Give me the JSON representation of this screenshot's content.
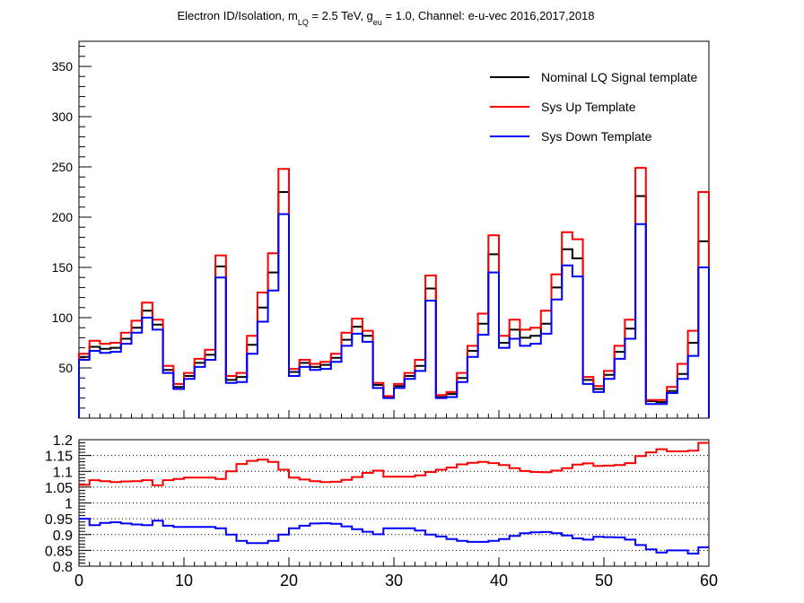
{
  "chart_data": [
    {
      "type": "line",
      "title_parts": {
        "a": "Electron ID/Isolation, m",
        "b": "LQ",
        "c": " = 2.5 TeV, g",
        "d": "eu",
        "e": " = 1.0, Channel: e-u-vec 2016,2017,2018"
      },
      "xlim": [
        0,
        60
      ],
      "ylim": [
        0,
        375
      ],
      "ytick_values": [
        50,
        100,
        150,
        200,
        250,
        300,
        350
      ],
      "ytick_labels": [
        "50",
        "100",
        "150",
        "200",
        "250",
        "300",
        "350"
      ],
      "legend_position": "top-right",
      "bin_edges": [
        0,
        1,
        2,
        3,
        4,
        5,
        6,
        7,
        8,
        9,
        10,
        11,
        12,
        13,
        14,
        15,
        16,
        17,
        18,
        19,
        20,
        21,
        22,
        23,
        24,
        25,
        26,
        27,
        28,
        29,
        30,
        31,
        32,
        33,
        34,
        35,
        36,
        37,
        38,
        39,
        40,
        41,
        42,
        43,
        44,
        45,
        46,
        47,
        48,
        49,
        50,
        51,
        52,
        53,
        54,
        55,
        56,
        57,
        58,
        59,
        60
      ],
      "series": [
        {
          "name": "Nominal LQ Signal template",
          "color": "#000000",
          "values": [
            61,
            71,
            69,
            70,
            79,
            90,
            107,
            93,
            48,
            31,
            42,
            55,
            63,
            151,
            38,
            41,
            73,
            110,
            145,
            225,
            46,
            55,
            51,
            53,
            60,
            78,
            91,
            82,
            33,
            21,
            32,
            42,
            52,
            129,
            21,
            24,
            40,
            67,
            94,
            163,
            75,
            88,
            80,
            82,
            94,
            130,
            168,
            159,
            38,
            29,
            43,
            66,
            89,
            221,
            17,
            16,
            27,
            44,
            75,
            176
          ]
        },
        {
          "name": "Sys Up Template",
          "color": "#ff0000",
          "values": [
            64,
            77,
            74,
            75,
            85,
            97,
            115,
            98,
            52,
            34,
            45,
            59,
            68,
            162,
            42,
            45,
            82,
            125,
            164,
            248,
            49,
            58,
            54,
            56,
            64,
            85,
            99,
            87,
            35,
            22,
            34,
            45,
            58,
            142,
            23,
            26,
            45,
            72,
            104,
            182,
            82,
            98,
            88,
            90,
            107,
            143,
            185,
            178,
            41,
            32,
            47,
            72,
            98,
            249,
            18,
            18,
            31,
            54,
            87,
            225
          ]
        },
        {
          "name": "Sys Down Template",
          "color": "#0000ff",
          "values": [
            58,
            67,
            65,
            66,
            74,
            85,
            100,
            88,
            45,
            29,
            39,
            51,
            58,
            140,
            35,
            36,
            64,
            96,
            127,
            203,
            42,
            51,
            48,
            49,
            56,
            72,
            84,
            76,
            30,
            20,
            30,
            39,
            47,
            117,
            20,
            21,
            36,
            61,
            83,
            145,
            70,
            79,
            72,
            74,
            84,
            118,
            152,
            141,
            34,
            26,
            39,
            59,
            79,
            193,
            14,
            14,
            25,
            39,
            62,
            150
          ]
        }
      ]
    },
    {
      "type": "line",
      "xlim": [
        0,
        60
      ],
      "ylim": [
        0.8,
        1.2
      ],
      "xtick_values": [
        0,
        10,
        20,
        30,
        40,
        50,
        60
      ],
      "xtick_labels": [
        "0",
        "10",
        "20",
        "30",
        "40",
        "50",
        "60"
      ],
      "ytick_values": [
        0.8,
        0.85,
        0.9,
        0.95,
        1.0,
        1.05,
        1.1,
        1.15,
        1.2
      ],
      "ytick_labels": [
        "0.8",
        "0.85",
        "0.9",
        "0.95",
        "1",
        "1.05",
        "1.1",
        "1.15",
        "1.2"
      ],
      "grid": "horizontal-dotted",
      "bin_edges": [
        0,
        1,
        2,
        3,
        4,
        5,
        6,
        7,
        8,
        9,
        10,
        11,
        12,
        13,
        14,
        15,
        16,
        17,
        18,
        19,
        20,
        21,
        22,
        23,
        24,
        25,
        26,
        27,
        28,
        29,
        30,
        31,
        32,
        33,
        34,
        35,
        36,
        37,
        38,
        39,
        40,
        41,
        42,
        43,
        44,
        45,
        46,
        47,
        48,
        49,
        50,
        51,
        52,
        53,
        54,
        55,
        56,
        57,
        58,
        59,
        60
      ],
      "series": [
        {
          "color": "#ff0000",
          "values": [
            1.057,
            1.072,
            1.069,
            1.066,
            1.068,
            1.069,
            1.072,
            1.056,
            1.072,
            1.076,
            1.08,
            1.08,
            1.08,
            1.076,
            1.1,
            1.123,
            1.133,
            1.137,
            1.13,
            1.105,
            1.08,
            1.074,
            1.069,
            1.066,
            1.067,
            1.073,
            1.082,
            1.095,
            1.102,
            1.083,
            1.083,
            1.083,
            1.087,
            1.098,
            1.105,
            1.112,
            1.122,
            1.127,
            1.13,
            1.126,
            1.12,
            1.11,
            1.101,
            1.098,
            1.097,
            1.102,
            1.11,
            1.121,
            1.125,
            1.117,
            1.118,
            1.12,
            1.126,
            1.148,
            1.16,
            1.17,
            1.163,
            1.163,
            1.165,
            1.19
          ]
        },
        {
          "color": "#0000ff",
          "values": [
            0.95,
            0.93,
            0.937,
            0.939,
            0.935,
            0.932,
            0.93,
            0.944,
            0.928,
            0.924,
            0.924,
            0.924,
            0.924,
            0.92,
            0.9,
            0.88,
            0.873,
            0.873,
            0.88,
            0.9,
            0.92,
            0.928,
            0.935,
            0.936,
            0.934,
            0.926,
            0.917,
            0.909,
            0.901,
            0.92,
            0.92,
            0.92,
            0.913,
            0.9,
            0.894,
            0.886,
            0.88,
            0.877,
            0.877,
            0.88,
            0.886,
            0.896,
            0.904,
            0.907,
            0.908,
            0.904,
            0.897,
            0.888,
            0.884,
            0.893,
            0.892,
            0.891,
            0.884,
            0.867,
            0.853,
            0.843,
            0.85,
            0.85,
            0.84,
            0.86
          ]
        }
      ]
    }
  ]
}
